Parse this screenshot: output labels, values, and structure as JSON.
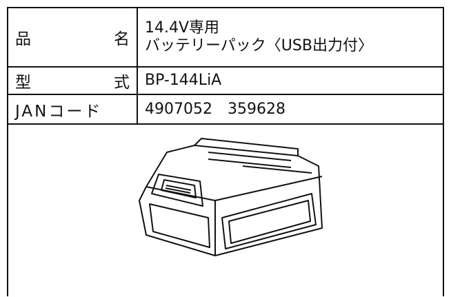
{
  "table": {
    "rows": [
      {
        "label": "品 名",
        "value": [
          "14.4V専用",
          "バッテリーパック〈USB出力付〉"
        ]
      },
      {
        "label": "型 式",
        "value": [
          "BP-144LiA"
        ]
      },
      {
        "label": "JANコード",
        "value": [
          "4907052　359628"
        ]
      }
    ]
  }
}
